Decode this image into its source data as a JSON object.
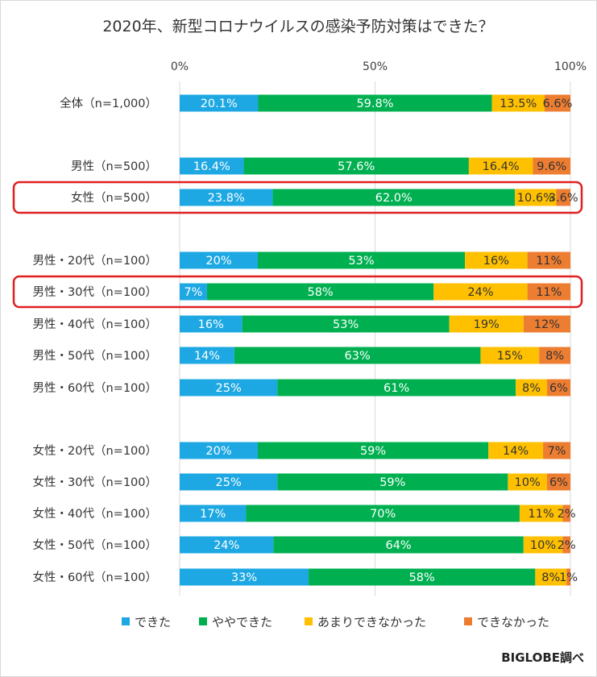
{
  "chart_data": {
    "type": "bar",
    "orientation": "horizontal",
    "stacked": true,
    "title": "2020年、新型コロナウイルスの感染予防対策はできた？",
    "source": "BIGLOBE調べ",
    "xlim": [
      0,
      100
    ],
    "x_ticks": [
      "0%",
      "50%",
      "100%"
    ],
    "grid": true,
    "legend_position": "bottom",
    "categories": [
      "全体（n=1,000）",
      "男性（n=500）",
      "女性（n=500）",
      "男性・20代（n=100）",
      "男性・30代（n=100）",
      "男性・40代（n=100）",
      "男性・50代（n=100）",
      "男性・60代（n=100）",
      "女性・20代（n=100）",
      "女性・30代（n=100）",
      "女性・40代（n=100）",
      "女性・50代（n=100）",
      "女性・60代（n=100）"
    ],
    "highlighted": [
      "女性（n=500）",
      "男性・30代（n=100）"
    ],
    "series": [
      {
        "name": "できた",
        "color": "#1EA8E3",
        "values": [
          20.1,
          16.4,
          23.8,
          20,
          7,
          16,
          14,
          25,
          20,
          25,
          17,
          24,
          33
        ],
        "labels": [
          "20.1%",
          "16.4%",
          "23.8%",
          "20%",
          "7%",
          "16%",
          "14%",
          "25%",
          "20%",
          "25%",
          "17%",
          "24%",
          "33%"
        ]
      },
      {
        "name": "ややできた",
        "color": "#00B050",
        "values": [
          59.8,
          57.6,
          62.0,
          53,
          58,
          53,
          63,
          61,
          59,
          59,
          70,
          64,
          58
        ],
        "labels": [
          "59.8%",
          "57.6%",
          "62.0%",
          "53%",
          "58%",
          "53%",
          "63%",
          "61%",
          "59%",
          "59%",
          "70%",
          "64%",
          "58%"
        ]
      },
      {
        "name": "あまりできなかった",
        "color": "#FFC000",
        "values": [
          13.5,
          16.4,
          10.6,
          16,
          24,
          19,
          15,
          8,
          14,
          10,
          11,
          10,
          8
        ],
        "labels": [
          "13.5%",
          "16.4%",
          "10.6%",
          "16%",
          "24%",
          "19%",
          "15%",
          "8%",
          "14%",
          "10%",
          "11%",
          "10%",
          "8%"
        ]
      },
      {
        "name": "できなかった",
        "color": "#ED7D31",
        "values": [
          6.6,
          9.6,
          3.6,
          11,
          11,
          12,
          8,
          6,
          7,
          6,
          2,
          2,
          1
        ],
        "labels": [
          "6.6%",
          "9.6%",
          "3.6%",
          "11%",
          "11%",
          "12%",
          "8%",
          "6%",
          "7%",
          "6%",
          "2%",
          "2%",
          "1%"
        ]
      }
    ]
  },
  "colors": {
    "highlight_box": "#E02020",
    "grid": "#d9d9d9",
    "text": "#333333"
  }
}
